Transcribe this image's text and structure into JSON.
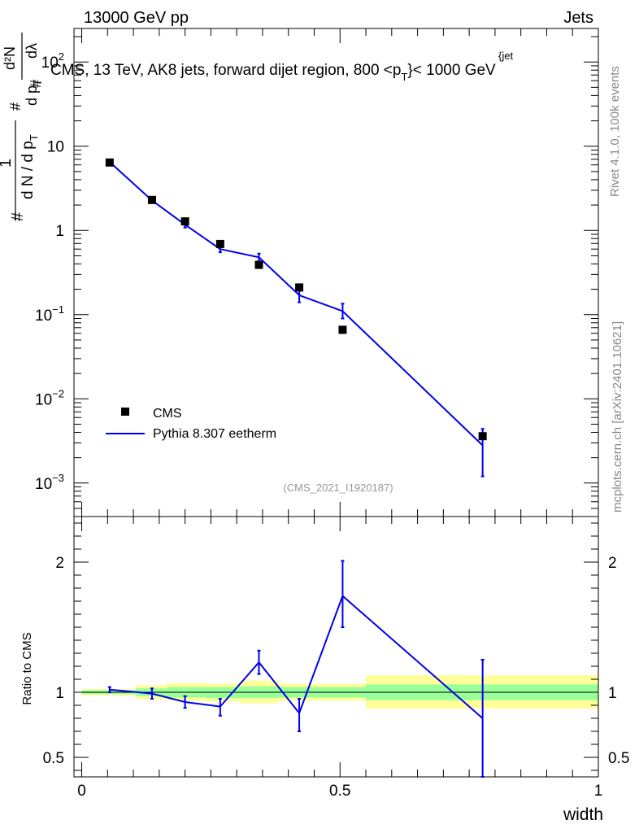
{
  "header": {
    "left": "13000 GeV pp",
    "right": "Jets"
  },
  "side": {
    "rivet": "Rivet 4.1.0,  100k events",
    "mcplots": "mcplots.cern.ch [arXiv:2401.10621]"
  },
  "chart_data": [
    {
      "type": "line",
      "title_main": "CMS, 13 TeV, AK8 jets, forward dijet region, 800 <p",
      "title_sub": "T",
      "title_sup": "{jet",
      "title_end": "}< 1000 GeV",
      "analysis_id": "(CMS_2021_I1920187)",
      "yscale": "log",
      "ylim": [
        0.0004,
        250
      ],
      "xlim": [
        -0.015,
        1.0
      ],
      "ylabel": {
        "hash1": "#",
        "one": "1",
        "frac_left": "d N / d p",
        "sub_T": "T",
        "hash2": "#",
        "hash3": "#",
        "dp": "d p",
        "sub_T2": "T",
        "dlambda": "dλ",
        "d2n": "d²N"
      },
      "y_ticks": [
        {
          "v": 0.001,
          "base": "10",
          "exp": "−3"
        },
        {
          "v": 0.01,
          "base": "10",
          "exp": "−2"
        },
        {
          "v": 0.1,
          "base": "10",
          "exp": "−1"
        },
        {
          "v": 1,
          "base": "1",
          "exp": ""
        },
        {
          "v": 10,
          "base": "10",
          "exp": ""
        },
        {
          "v": 100,
          "base": "10",
          "exp": "2"
        }
      ],
      "legend": [
        {
          "name": "CMS",
          "marker": "square",
          "color": "#000000"
        },
        {
          "name": "Pythia 8.307 eetherm",
          "marker": "line",
          "color": "#0000ee"
        }
      ],
      "series": [
        {
          "name": "CMS",
          "x": [
            0.054,
            0.136,
            0.2,
            0.268,
            0.343,
            0.421,
            0.505,
            0.776
          ],
          "values": [
            6.4,
            2.3,
            1.28,
            0.69,
            0.39,
            0.21,
            0.066,
            0.0036
          ]
        },
        {
          "name": "Pythia 8.307 eetherm",
          "x": [
            0.054,
            0.136,
            0.2,
            0.268,
            0.343,
            0.421,
            0.505,
            0.776
          ],
          "values": [
            6.5,
            2.27,
            1.17,
            0.6,
            0.48,
            0.17,
            0.11,
            0.0028
          ],
          "err_low": [
            6.3,
            2.2,
            1.08,
            0.55,
            0.43,
            0.14,
            0.09,
            0.0012
          ],
          "err_high": [
            6.7,
            2.34,
            1.27,
            0.66,
            0.53,
            0.2,
            0.135,
            0.0044
          ]
        }
      ]
    },
    {
      "type": "line",
      "ylabel": "Ratio to CMS",
      "xlabel": "width",
      "ylim": [
        0.35,
        2.35
      ],
      "xlim": [
        -0.015,
        1.0
      ],
      "x_ticks": [
        {
          "v": 0,
          "label": "0"
        },
        {
          "v": 0.5,
          "label": "0.5"
        },
        {
          "v": 1,
          "label": "1"
        }
      ],
      "y_ticks": [
        {
          "v": 0.5,
          "label": "0.5"
        },
        {
          "v": 1,
          "label": "1"
        },
        {
          "v": 2,
          "label": "2"
        }
      ],
      "bands": [
        {
          "x0": 0.0,
          "x1": 0.105,
          "y_lo": 0.975,
          "y_hi": 1.025,
          "g_lo": 0.985,
          "g_hi": 1.015
        },
        {
          "x0": 0.105,
          "x1": 0.165,
          "y_lo": 0.945,
          "y_hi": 1.055,
          "g_lo": 0.97,
          "g_hi": 1.03
        },
        {
          "x0": 0.165,
          "x1": 0.24,
          "y_lo": 0.935,
          "y_hi": 1.07,
          "g_lo": 0.96,
          "g_hi": 1.04
        },
        {
          "x0": 0.24,
          "x1": 0.305,
          "y_lo": 0.93,
          "y_hi": 1.065,
          "g_lo": 0.955,
          "g_hi": 1.04
        },
        {
          "x0": 0.305,
          "x1": 0.38,
          "y_lo": 0.915,
          "y_hi": 1.09,
          "g_lo": 0.955,
          "g_hi": 1.045
        },
        {
          "x0": 0.38,
          "x1": 0.55,
          "y_lo": 0.935,
          "y_hi": 1.065,
          "g_lo": 0.96,
          "g_hi": 1.04
        },
        {
          "x0": 0.55,
          "x1": 1.0,
          "y_lo": 0.875,
          "y_hi": 1.13,
          "g_lo": 0.94,
          "g_hi": 1.06
        }
      ],
      "series": [
        {
          "name": "Pythia 8.307 eetherm / CMS",
          "x": [
            0.054,
            0.136,
            0.2,
            0.268,
            0.343,
            0.421,
            0.505,
            0.776
          ],
          "values": [
            1.02,
            0.99,
            0.925,
            0.89,
            1.23,
            0.84,
            1.74,
            0.8
          ],
          "err_low": [
            1.0,
            0.95,
            0.88,
            0.82,
            1.14,
            0.7,
            1.5,
            0.35
          ],
          "err_high": [
            1.04,
            1.03,
            0.97,
            0.95,
            1.32,
            0.95,
            2.01,
            1.25
          ]
        }
      ]
    }
  ]
}
